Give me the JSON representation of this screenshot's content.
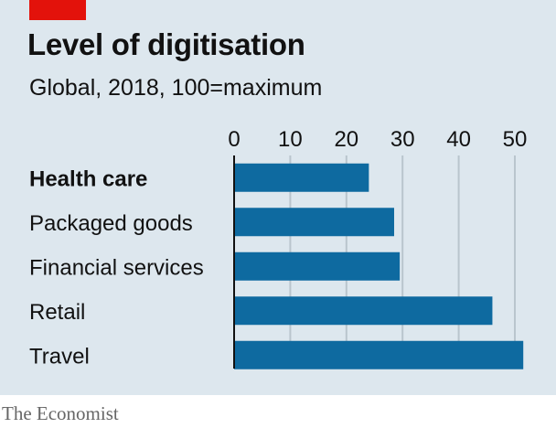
{
  "accent_color": "#e3120b",
  "background_color": "#dde7ee",
  "bar_color": "#0e6aa0",
  "highlight_category": "Health care",
  "title": "Level of digitisation",
  "subtitle": "Global, 2018, 100=maximum",
  "source": "The Economist",
  "chart_data": {
    "type": "bar",
    "orientation": "horizontal",
    "title": "Level of digitisation",
    "subtitle": "Global, 2018, 100=maximum",
    "categories": [
      "Health care",
      "Packaged goods",
      "Financial services",
      "Retail",
      "Travel"
    ],
    "values": [
      24,
      28.5,
      29.5,
      46,
      51.5
    ],
    "xlim": [
      0,
      50
    ],
    "xticks": [
      "0",
      "10",
      "20",
      "30",
      "40",
      "50"
    ],
    "xlabel": "",
    "ylabel": "",
    "grid": true,
    "legend": "none"
  }
}
